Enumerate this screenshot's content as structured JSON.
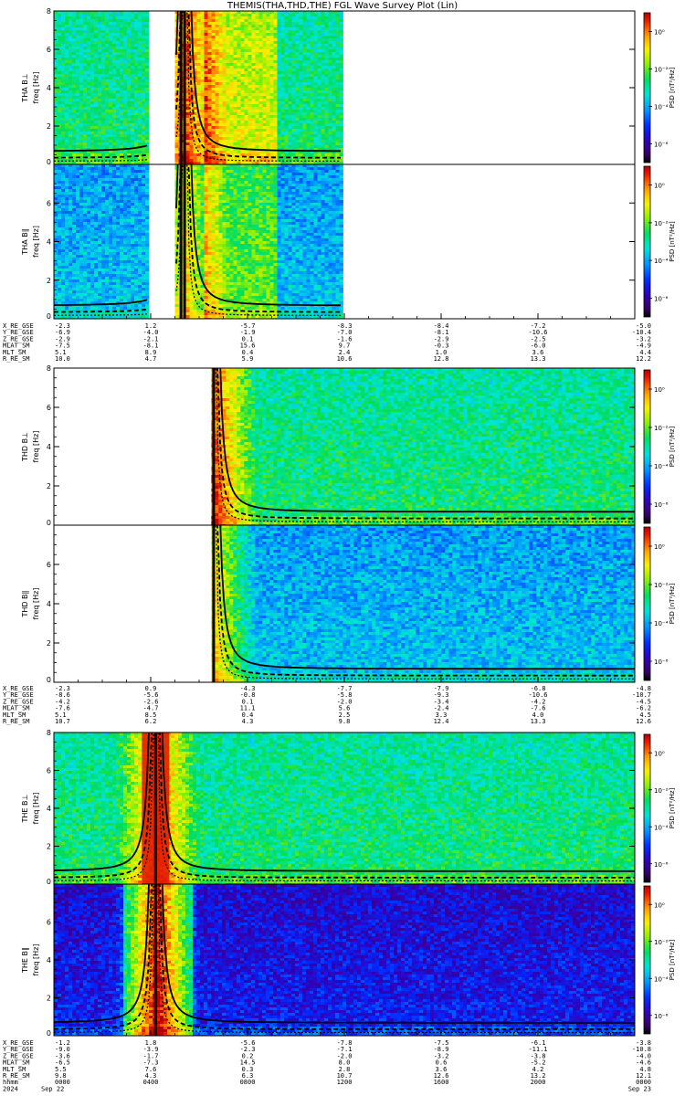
{
  "chart_data": {
    "type": "heatmap",
    "title": "THEMIS(THA,THD,THE) FGL Wave Survey Plot (Lin)",
    "colorbar_label": "PSD [nT²/Hz]",
    "colorbar_ticks": [
      "10⁰",
      "10⁻²",
      "10⁻⁴",
      "10⁻⁶"
    ],
    "colorbar_range_log10": [
      -7,
      1
    ],
    "yticks": [
      "0",
      "2",
      "4",
      "6",
      "8"
    ],
    "ylim": [
      0,
      8
    ],
    "ylabel": "freq [Hz]",
    "xlim_hours": [
      0,
      24
    ],
    "panels": [
      {
        "probe": "THA",
        "name": "THA B⊥",
        "data_ranges_hours": [
          [
            0,
            3.9
          ],
          [
            5.0,
            11.9
          ]
        ],
        "gap_hours": [
          3.9,
          5.0
        ],
        "peak_hour": 5.4,
        "ridge_hours": [
          5.25,
          5.4
        ],
        "intensity": "green"
      },
      {
        "probe": "THA",
        "name": "THA B∥",
        "data_ranges_hours": [
          [
            0,
            3.9
          ],
          [
            5.0,
            11.9
          ]
        ],
        "gap_hours": [
          3.9,
          5.0
        ],
        "peak_hour": 5.4,
        "ridge_hours": [
          5.25,
          5.4
        ],
        "intensity": "blue"
      },
      {
        "probe": "THD",
        "name": "THD B⊥",
        "data_ranges_hours": [
          [
            6.5,
            24
          ]
        ],
        "peak_hour": 6.6,
        "ridge_hours": [
          6.6
        ],
        "intensity": "green"
      },
      {
        "probe": "THD",
        "name": "THD B∥",
        "data_ranges_hours": [
          [
            6.5,
            24
          ]
        ],
        "peak_hour": 6.6,
        "ridge_hours": [
          6.6
        ],
        "intensity": "blue"
      },
      {
        "probe": "THE",
        "name": "THE B⊥",
        "data_ranges_hours": [
          [
            0,
            24
          ]
        ],
        "peak_hour": 4.2,
        "ridge_hours": [
          4.2
        ],
        "intensity": "green"
      },
      {
        "probe": "THE",
        "name": "THE B∥",
        "data_ranges_hours": [
          [
            0,
            24
          ]
        ],
        "peak_hour": 4.2,
        "ridge_hours": [
          4.2
        ],
        "intensity": "purple"
      }
    ],
    "orbit_blocks": [
      {
        "rows": [
          {
            "label": "X_RE_GSE",
            "values": [
              "-2.3",
              "1.2",
              "-5.7",
              "-8.3",
              "-8.4",
              "-7.2",
              "-5.0"
            ]
          },
          {
            "label": "Y_RE_GSE",
            "values": [
              "-6.9",
              "-4.0",
              "-1.9",
              "-7.0",
              "-8.1",
              "-10.6",
              "-10.4"
            ]
          },
          {
            "label": "Z_RE_GSE",
            "values": [
              "-2.9",
              "-2.1",
              "0.1",
              "-1.6",
              "-2.9",
              "-2.5",
              "-3.2"
            ]
          },
          {
            "label": "MLAT_SM",
            "values": [
              "-7.5",
              "-8.1",
              "15.6",
              "9.7",
              "-0.3",
              "-6.0",
              "-4.9"
            ]
          },
          {
            "label": "MLT_SM",
            "values": [
              "5.1",
              "8.9",
              "0.4",
              "2.4",
              "1.0",
              "3.6",
              "4.4"
            ]
          },
          {
            "label": "R_RE_SM",
            "values": [
              "10.0",
              "4.7",
              "5.9",
              "10.6",
              "12.8",
              "13.3",
              "12.2"
            ]
          }
        ]
      },
      {
        "rows": [
          {
            "label": "X_RE_GSE",
            "values": [
              "-2.3",
              "0.9",
              "-4.3",
              "-7.7",
              "-7.9",
              "-6.8",
              "-4.8"
            ]
          },
          {
            "label": "Y_RE_GSE",
            "values": [
              "-8.6",
              "-5.6",
              "-0.8",
              "-5.8",
              "-9.3",
              "-10.6",
              "-10.7"
            ]
          },
          {
            "label": "Z_RE_GSE",
            "values": [
              "-4.2",
              "-2.6",
              "0.1",
              "-2.0",
              "-3.4",
              "-4.2",
              "-4.5"
            ]
          },
          {
            "label": "MLAT_SM",
            "values": [
              "-7.6",
              "-4.7",
              "11.1",
              "5.6",
              "-2.4",
              "-7.6",
              "-6.2"
            ]
          },
          {
            "label": "MLT_SM",
            "values": [
              "5.1",
              "8.5",
              "0.4",
              "2.5",
              "3.3",
              "4.0",
              "4.5"
            ]
          },
          {
            "label": "R_RE_SM",
            "values": [
              "10.7",
              "6.2",
              "4.3",
              "9.8",
              "12.4",
              "13.3",
              "12.6"
            ]
          }
        ]
      },
      {
        "rows": [
          {
            "label": "X_RE_GSE",
            "values": [
              "-1.2",
              "1.8",
              "-5.6",
              "-7.8",
              "-7.5",
              "-6.1",
              "-3.8"
            ]
          },
          {
            "label": "Y_RE_GSE",
            "values": [
              "-9.0",
              "-3.9",
              "-2.3",
              "-7.1",
              "-8.9",
              "-11.1",
              "-10.8"
            ]
          },
          {
            "label": "Z_RE_GSE",
            "values": [
              "-3.6",
              "-1.7",
              "0.2",
              "-2.0",
              "-3.2",
              "-3.8",
              "-4.0"
            ]
          },
          {
            "label": "MLAT_SM",
            "values": [
              "-6.5",
              "-7.3",
              "14.5",
              "8.0",
              "0.6",
              "-5.2",
              "-4.6"
            ]
          },
          {
            "label": "MLT_SM",
            "values": [
              "5.5",
              "7.6",
              "0.3",
              "2.8",
              "3.6",
              "4.2",
              "4.8"
            ]
          },
          {
            "label": "R_RE_SM",
            "values": [
              "9.8",
              "4.3",
              "6.3",
              "10.7",
              "12.6",
              "13.2",
              "12.1"
            ]
          }
        ],
        "time_row": {
          "label": "hhmm",
          "values": [
            "0000",
            "0400",
            "0800",
            "1200",
            "1600",
            "2000",
            "0000"
          ]
        },
        "date_row": {
          "label": "2024",
          "values": [
            "Sep 22",
            "Sep 23"
          ]
        }
      }
    ]
  }
}
